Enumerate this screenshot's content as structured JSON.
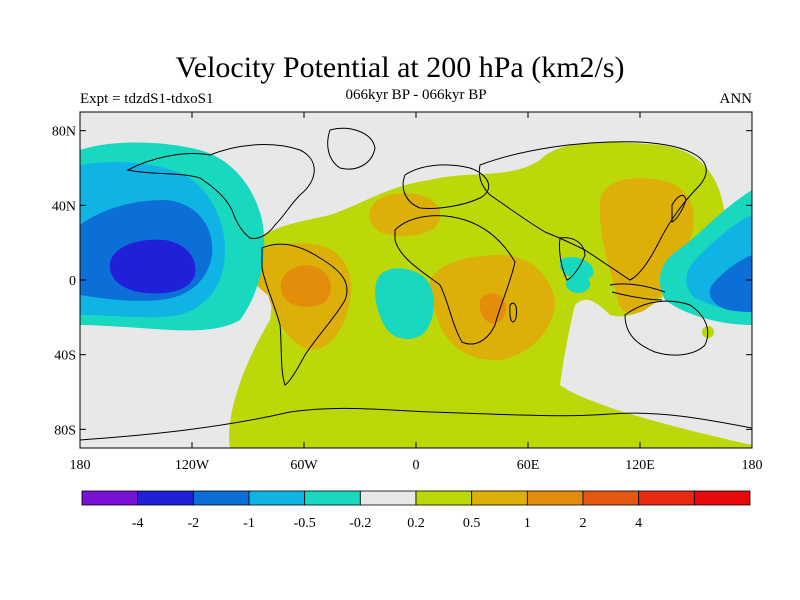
{
  "title": "Velocity Potential at 200 hPa (km2/s)",
  "left_string": "Expt = tdzdS1-tdxoS1",
  "center_string": "066kyr BP - 066kyr BP",
  "right_string": "ANN",
  "map": {
    "projection": "cylindrical equidistant",
    "lon_range": [
      -180,
      180
    ],
    "lat_range": [
      -90,
      90
    ],
    "x_ticks": [
      {
        "value": -180,
        "label": "180"
      },
      {
        "value": -120,
        "label": "120W"
      },
      {
        "value": -60,
        "label": "60W"
      },
      {
        "value": 0,
        "label": "0"
      },
      {
        "value": 60,
        "label": "60E"
      },
      {
        "value": 120,
        "label": "120E"
      },
      {
        "value": 180,
        "label": "180"
      }
    ],
    "y_ticks": [
      {
        "value": 80,
        "label": "80N"
      },
      {
        "value": 40,
        "label": "40N"
      },
      {
        "value": 0,
        "label": "0"
      },
      {
        "value": -40,
        "label": "40S"
      },
      {
        "value": -80,
        "label": "80S"
      }
    ]
  },
  "colorbar": {
    "colors": [
      "#7a12d6",
      "#2020d8",
      "#0c6fd8",
      "#10b4e4",
      "#18d8c0",
      "#e8e8e8",
      "#bcd808",
      "#dcb008",
      "#e48c0c",
      "#e45810",
      "#e82a10",
      "#e80a0a"
    ],
    "labels": [
      "-4",
      "-2",
      "-1",
      "-0.5",
      "-0.2",
      "0.2",
      "0.5",
      "1",
      "2",
      "4"
    ]
  }
}
